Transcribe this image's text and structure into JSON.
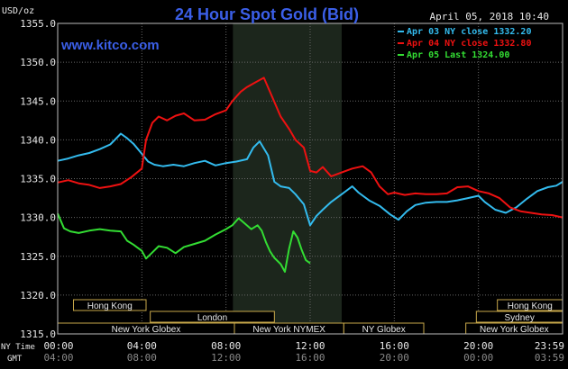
{
  "chart_data": {
    "type": "line",
    "title": "24 Hour Spot Gold (Bid)",
    "subtitle": "www.kitco.com",
    "date_label": "April 05, 2018 10:40",
    "ylabel": "USD/oz",
    "ylim": [
      1315,
      1355
    ],
    "yticks": [
      "1355.0",
      "1350.0",
      "1345.0",
      "1340.0",
      "1335.0",
      "1330.0",
      "1325.0",
      "1320.0",
      "1315.0"
    ],
    "xlim": [
      0,
      24
    ],
    "x_row_labels": {
      "ny": "NY Time",
      "gmt": "GMT"
    },
    "xticks_ny": [
      "00:00",
      "04:00",
      "08:00",
      "12:00",
      "16:00",
      "20:00",
      "23:59"
    ],
    "xticks_gmt": [
      "04:00",
      "08:00",
      "12:00",
      "16:00",
      "20:00",
      "00:00",
      "03:59"
    ],
    "xticks_pos": [
      0,
      4,
      8,
      12,
      16,
      20,
      24
    ],
    "grid": true,
    "legend_position": "top-right",
    "highlight_band": [
      8.33,
      13.5
    ],
    "series": [
      {
        "name": "Apr 03 NY close 1332.20",
        "color": "#33bbee",
        "points": [
          [
            0,
            1337.3
          ],
          [
            0.5,
            1337.6
          ],
          [
            1,
            1338.0
          ],
          [
            1.5,
            1338.3
          ],
          [
            2,
            1338.8
          ],
          [
            2.5,
            1339.4
          ],
          [
            3,
            1340.8
          ],
          [
            3.3,
            1340.2
          ],
          [
            3.6,
            1339.5
          ],
          [
            4,
            1338.2
          ],
          [
            4.3,
            1337.2
          ],
          [
            4.6,
            1336.8
          ],
          [
            5,
            1336.6
          ],
          [
            5.5,
            1336.8
          ],
          [
            6,
            1336.6
          ],
          [
            6.5,
            1337.0
          ],
          [
            7,
            1337.3
          ],
          [
            7.5,
            1336.7
          ],
          [
            8,
            1337.0
          ],
          [
            8.5,
            1337.2
          ],
          [
            9,
            1337.5
          ],
          [
            9.3,
            1339.0
          ],
          [
            9.6,
            1339.8
          ],
          [
            10,
            1338.0
          ],
          [
            10.3,
            1334.6
          ],
          [
            10.6,
            1334.0
          ],
          [
            11,
            1333.8
          ],
          [
            11.3,
            1333.0
          ],
          [
            11.7,
            1331.7
          ],
          [
            12,
            1329.0
          ],
          [
            12.3,
            1330.2
          ],
          [
            12.6,
            1331.0
          ],
          [
            13,
            1332.0
          ],
          [
            13.5,
            1333.0
          ],
          [
            14,
            1334.0
          ],
          [
            14.3,
            1333.2
          ],
          [
            14.8,
            1332.2
          ],
          [
            15.3,
            1331.5
          ],
          [
            15.8,
            1330.4
          ],
          [
            16.2,
            1329.7
          ],
          [
            16.6,
            1330.8
          ],
          [
            17,
            1331.6
          ],
          [
            17.5,
            1331.9
          ],
          [
            18,
            1332.0
          ],
          [
            18.5,
            1332.0
          ],
          [
            19,
            1332.2
          ],
          [
            19.5,
            1332.5
          ],
          [
            20,
            1332.8
          ],
          [
            20.3,
            1332.0
          ],
          [
            20.8,
            1331.0
          ],
          [
            21.3,
            1330.6
          ],
          [
            21.8,
            1331.3
          ],
          [
            22.3,
            1332.4
          ],
          [
            22.8,
            1333.4
          ],
          [
            23.3,
            1333.9
          ],
          [
            23.7,
            1334.1
          ],
          [
            24,
            1334.6
          ]
        ]
      },
      {
        "name": "Apr 04 NY close 1332.80",
        "color": "#ee1111",
        "points": [
          [
            0,
            1334.5
          ],
          [
            0.5,
            1334.8
          ],
          [
            1,
            1334.4
          ],
          [
            1.5,
            1334.2
          ],
          [
            2,
            1333.8
          ],
          [
            2.5,
            1334.0
          ],
          [
            3,
            1334.3
          ],
          [
            3.5,
            1335.2
          ],
          [
            4,
            1336.3
          ],
          [
            4.2,
            1340.0
          ],
          [
            4.5,
            1342.2
          ],
          [
            4.8,
            1343.0
          ],
          [
            5.2,
            1342.5
          ],
          [
            5.6,
            1343.1
          ],
          [
            6,
            1343.4
          ],
          [
            6.5,
            1342.5
          ],
          [
            7,
            1342.6
          ],
          [
            7.5,
            1343.3
          ],
          [
            8,
            1343.8
          ],
          [
            8.3,
            1345.0
          ],
          [
            8.7,
            1346.2
          ],
          [
            9,
            1346.8
          ],
          [
            9.4,
            1347.4
          ],
          [
            9.8,
            1348.0
          ],
          [
            10.2,
            1345.5
          ],
          [
            10.6,
            1343.0
          ],
          [
            11,
            1341.4
          ],
          [
            11.3,
            1340.0
          ],
          [
            11.7,
            1339.0
          ],
          [
            12,
            1336.0
          ],
          [
            12.3,
            1335.8
          ],
          [
            12.6,
            1336.5
          ],
          [
            13,
            1335.3
          ],
          [
            13.5,
            1335.8
          ],
          [
            14,
            1336.3
          ],
          [
            14.5,
            1336.6
          ],
          [
            14.9,
            1335.8
          ],
          [
            15.3,
            1334.0
          ],
          [
            15.7,
            1333.0
          ],
          [
            16,
            1333.2
          ],
          [
            16.5,
            1332.9
          ],
          [
            17,
            1333.1
          ],
          [
            17.5,
            1333.0
          ],
          [
            18,
            1333.0
          ],
          [
            18.5,
            1333.1
          ],
          [
            19,
            1333.9
          ],
          [
            19.5,
            1334.0
          ],
          [
            20,
            1333.4
          ],
          [
            20.5,
            1333.1
          ],
          [
            21,
            1332.5
          ],
          [
            21.5,
            1331.3
          ],
          [
            22,
            1330.8
          ],
          [
            22.5,
            1330.6
          ],
          [
            23,
            1330.4
          ],
          [
            23.5,
            1330.3
          ],
          [
            24,
            1330.0
          ]
        ]
      },
      {
        "name": "Apr 05 Last 1324.00",
        "color": "#33dd33",
        "points": [
          [
            0,
            1330.5
          ],
          [
            0.3,
            1328.6
          ],
          [
            0.6,
            1328.2
          ],
          [
            1,
            1328.0
          ],
          [
            1.5,
            1328.3
          ],
          [
            2,
            1328.5
          ],
          [
            2.5,
            1328.3
          ],
          [
            3,
            1328.2
          ],
          [
            3.3,
            1327.0
          ],
          [
            3.6,
            1326.5
          ],
          [
            4,
            1325.7
          ],
          [
            4.2,
            1324.7
          ],
          [
            4.5,
            1325.5
          ],
          [
            4.8,
            1326.3
          ],
          [
            5.2,
            1326.1
          ],
          [
            5.6,
            1325.4
          ],
          [
            6,
            1326.2
          ],
          [
            6.5,
            1326.6
          ],
          [
            7,
            1327.0
          ],
          [
            7.5,
            1327.8
          ],
          [
            8,
            1328.5
          ],
          [
            8.3,
            1329.0
          ],
          [
            8.6,
            1329.9
          ],
          [
            8.9,
            1329.2
          ],
          [
            9.2,
            1328.5
          ],
          [
            9.5,
            1329.0
          ],
          [
            9.7,
            1328.3
          ],
          [
            9.9,
            1326.8
          ],
          [
            10.1,
            1325.6
          ],
          [
            10.3,
            1324.8
          ],
          [
            10.6,
            1324.0
          ],
          [
            10.8,
            1323.0
          ],
          [
            11.0,
            1326.0
          ],
          [
            11.2,
            1328.2
          ],
          [
            11.4,
            1327.4
          ],
          [
            11.6,
            1325.8
          ],
          [
            11.8,
            1324.5
          ],
          [
            12,
            1324.1
          ]
        ]
      }
    ],
    "sessions": [
      {
        "label": "Hong Kong",
        "row": 0,
        "start": 0.75,
        "end": 4.2
      },
      {
        "label": "Hong Kong",
        "row": 0,
        "start": 20.9,
        "end": 24
      },
      {
        "label": "London",
        "row": 1,
        "start": 4.4,
        "end": 10.3
      },
      {
        "label": "Sydney",
        "row": 1,
        "start": 19.9,
        "end": 24
      },
      {
        "label": "New York Globex",
        "row": 2,
        "start": 0,
        "end": 8.4
      },
      {
        "label": "New York NYMEX",
        "row": 2,
        "start": 8.4,
        "end": 13.6
      },
      {
        "label": "NY Globex",
        "row": 2,
        "start": 13.6,
        "end": 17.4
      },
      {
        "label": "New York Globex",
        "row": 2,
        "start": 19.4,
        "end": 24
      }
    ]
  }
}
